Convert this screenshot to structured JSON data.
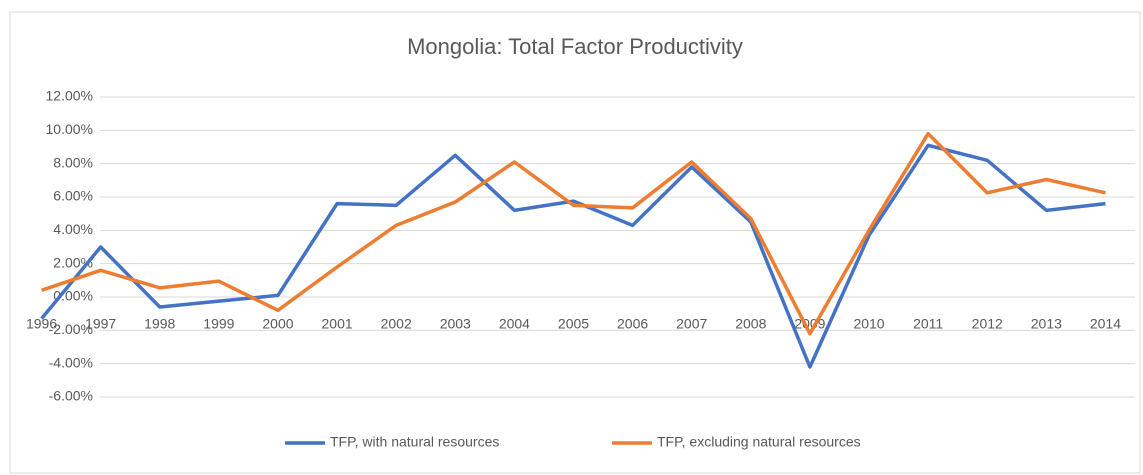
{
  "chart_data": {
    "type": "line",
    "title": "Mongolia: Total Factor Productivity",
    "categories": [
      "1996",
      "1997",
      "1998",
      "1999",
      "2000",
      "2001",
      "2002",
      "2003",
      "2004",
      "2005",
      "2006",
      "2007",
      "2008",
      "2009",
      "2010",
      "2011",
      "2012",
      "2013",
      "2014"
    ],
    "series": [
      {
        "name": "TFP, with natural resources",
        "color": "#4472c4",
        "values": [
          -1.3,
          3.0,
          -0.6,
          -0.25,
          0.1,
          5.6,
          5.5,
          8.5,
          5.2,
          5.75,
          4.3,
          7.8,
          4.5,
          -4.2,
          3.7,
          9.1,
          8.2,
          5.2,
          5.6
        ]
      },
      {
        "name": "TFP, excluding natural resources",
        "color": "#ed7d31",
        "values": [
          0.4,
          1.6,
          0.55,
          0.95,
          -0.8,
          1.8,
          4.3,
          5.7,
          8.1,
          5.5,
          5.35,
          8.1,
          4.7,
          -2.2,
          4.0,
          9.8,
          6.25,
          7.05,
          6.25
        ]
      }
    ],
    "ylim": [
      -6,
      12
    ],
    "yticks": [
      {
        "value": -6,
        "label": "-6.00%"
      },
      {
        "value": -4,
        "label": "-4.00%"
      },
      {
        "value": -2,
        "label": "-2.00%"
      },
      {
        "value": 0,
        "label": "0.00%"
      },
      {
        "value": 2,
        "label": "2.00%"
      },
      {
        "value": 4,
        "label": "4.00%"
      },
      {
        "value": 6,
        "label": "6.00%"
      },
      {
        "value": 8,
        "label": "8.00%"
      },
      {
        "value": 10,
        "label": "10.00%"
      },
      {
        "value": 12,
        "label": "12.00%"
      }
    ],
    "grid": true,
    "legend": "bottom"
  }
}
